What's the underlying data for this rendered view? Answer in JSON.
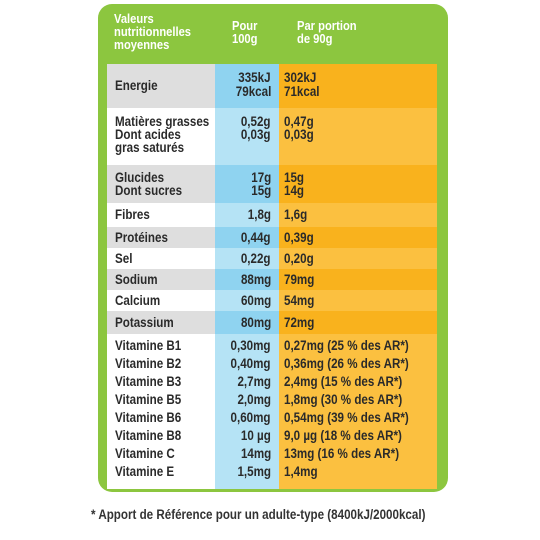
{
  "header": {
    "label_col": [
      "Valeurs",
      "nutritionnelles",
      "moyennes"
    ],
    "per_100_col": [
      "Pour",
      "100g"
    ],
    "per_portion_col": [
      "Par portion",
      "de 90g"
    ]
  },
  "rows": [
    {
      "label": [
        "Energie"
      ],
      "per_100": [
        "335kJ",
        "79kcal"
      ],
      "per_portion": [
        "302kJ",
        "71kcal"
      ]
    },
    {
      "label": [
        "Matières grasses",
        "Dont acides",
        "gras saturés"
      ],
      "per_100": [
        "0,52g",
        "0,03g"
      ],
      "per_portion": [
        "0,47g",
        "0,03g"
      ]
    },
    {
      "label": [
        "Glucides",
        "Dont sucres"
      ],
      "per_100": [
        "17g",
        "15g"
      ],
      "per_portion": [
        "15g",
        "14g"
      ]
    },
    {
      "label": [
        "Fibres"
      ],
      "per_100": [
        "1,8g"
      ],
      "per_portion": [
        "1,6g"
      ]
    },
    {
      "label": [
        "Protéines"
      ],
      "per_100": [
        "0,44g"
      ],
      "per_portion": [
        "0,39g"
      ]
    },
    {
      "label": [
        "Sel"
      ],
      "per_100": [
        "0,22g"
      ],
      "per_portion": [
        "0,20g"
      ]
    },
    {
      "label": [
        "Sodium"
      ],
      "per_100": [
        "88mg"
      ],
      "per_portion": [
        "79mg"
      ]
    },
    {
      "label": [
        "Calcium"
      ],
      "per_100": [
        "60mg"
      ],
      "per_portion": [
        "54mg"
      ]
    },
    {
      "label": [
        "Potassium"
      ],
      "per_100": [
        "80mg"
      ],
      "per_portion": [
        "72mg"
      ]
    },
    {
      "label": [
        "Vitamine B1",
        "Vitamine B2",
        "Vitamine B3",
        "Vitamine B5",
        "Vitamine B6",
        "Vitamine B8",
        "Vitamine C",
        "Vitamine E"
      ],
      "per_100": [
        "0,30mg",
        "0,40mg",
        "2,7mg",
        "2,0mg",
        "0,60mg",
        "10 µg",
        "14mg",
        "1,5mg"
      ],
      "per_portion": [
        "0,27mg (25 % des AR*)",
        "0,36mg (26 % des AR*)",
        "2,4mg (15 % des AR*)",
        "1,8mg (30 % des AR*)",
        "0,54mg (39 % des AR*)",
        "9,0 µg (18 % des AR*)",
        "13mg (16 % des AR*)",
        "1,4mg"
      ]
    }
  ],
  "footnote": "* Apport de Référence pour un adulte-type (8400kJ/2000kcal)",
  "colors": {
    "panel": "#8cc63f",
    "per_100_bg": "#8fd3f0",
    "per_portion_bg": "#f9b21d",
    "shaded_row": "#dedede"
  }
}
